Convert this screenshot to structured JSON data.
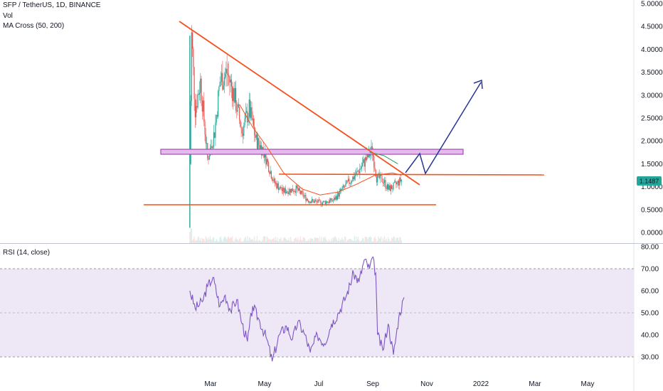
{
  "header": {
    "symbol_line": "SFP / TetherUS, 1D, BINANCE",
    "vol_label": "Vol",
    "ma_label": "MA Cross (50, 200)"
  },
  "rsi_pane": {
    "label": "RSI (14, close)"
  },
  "price_badge": "1.1487",
  "colors": {
    "bull": "#26a69a",
    "bear": "#ef5350",
    "trendline": "#f4511e",
    "ma_fast": "#f4511e",
    "ma_slow": "#1b9e5a",
    "zone_fill": "#e1bee7",
    "zone_stroke": "#ab47bc",
    "projection": "#283593",
    "rsi_line": "#7e57c2",
    "rsi_band": "#ede7f6",
    "badge": "#26a69a"
  },
  "chart_data": [
    {
      "type": "candlestick",
      "title": "SFP / TetherUS, 1D, BINANCE",
      "y_ticks": [
        "5.0000",
        "4.5000",
        "4.0000",
        "3.5000",
        "3.0000",
        "2.5000",
        "2.0000",
        "1.5000",
        "1.0000",
        "0.5000",
        "0.0000"
      ],
      "ylim": [
        0,
        5
      ],
      "x_ticks": [
        "Mar",
        "May",
        "Jul",
        "Sep",
        "Nov",
        "2022",
        "Mar",
        "May"
      ],
      "last_price": 1.1487,
      "approx_path": [
        {
          "x": "Feb 08",
          "y": 1.5
        },
        {
          "x": "Feb 10",
          "y": 4.3
        },
        {
          "x": "Feb 14",
          "y": 2.7
        },
        {
          "x": "Feb 20",
          "y": 3.3
        },
        {
          "x": "Feb 28",
          "y": 1.6
        },
        {
          "x": "Mar 08",
          "y": 2.2
        },
        {
          "x": "Mar 14",
          "y": 3.3
        },
        {
          "x": "Mar 22",
          "y": 3.5
        },
        {
          "x": "Mar 30",
          "y": 3.0
        },
        {
          "x": "Apr 08",
          "y": 2.2
        },
        {
          "x": "Apr 16",
          "y": 2.7
        },
        {
          "x": "Apr 24",
          "y": 2.0
        },
        {
          "x": "May 02",
          "y": 1.8
        },
        {
          "x": "May 14",
          "y": 1.1
        },
        {
          "x": "May 24",
          "y": 0.9
        },
        {
          "x": "Jun 08",
          "y": 0.95
        },
        {
          "x": "Jun 22",
          "y": 0.7
        },
        {
          "x": "Jul 06",
          "y": 0.65
        },
        {
          "x": "Jul 20",
          "y": 0.7
        },
        {
          "x": "Aug 02",
          "y": 1.0
        },
        {
          "x": "Aug 16",
          "y": 1.3
        },
        {
          "x": "Aug 26",
          "y": 1.6
        },
        {
          "x": "Sep 02",
          "y": 1.8
        },
        {
          "x": "Sep 07",
          "y": 1.2
        },
        {
          "x": "Sep 14",
          "y": 1.15
        },
        {
          "x": "Sep 20",
          "y": 0.95
        },
        {
          "x": "Sep 26",
          "y": 1.0
        },
        {
          "x": "Oct 05",
          "y": 1.15
        }
      ],
      "ma_cross": {
        "fast": [
          {
            "x": "Apr 05",
            "y": 2.8
          },
          {
            "x": "Apr 20",
            "y": 2.3
          },
          {
            "x": "May 05",
            "y": 1.9
          },
          {
            "x": "May 25",
            "y": 1.3
          },
          {
            "x": "Jun 15",
            "y": 0.95
          },
          {
            "x": "Jul 05",
            "y": 0.82
          },
          {
            "x": "Jul 25",
            "y": 0.88
          },
          {
            "x": "Aug 15",
            "y": 1.05
          },
          {
            "x": "Sep 05",
            "y": 1.25
          },
          {
            "x": "Sep 25",
            "y": 1.3
          },
          {
            "x": "Oct 05",
            "y": 1.25
          }
        ],
        "slow": [
          {
            "x": "Aug 30",
            "y": 1.75
          },
          {
            "x": "Sep 15",
            "y": 1.68
          },
          {
            "x": "Oct 01",
            "y": 1.5
          }
        ]
      }
    },
    {
      "type": "line",
      "title": "RSI (14, close)",
      "y_ticks": [
        "80.00",
        "70.00",
        "60.00",
        "50.00",
        "40.00",
        "30.00"
      ],
      "ylim": [
        25,
        80
      ],
      "overbought": 70,
      "oversold": 30,
      "x_ticks": [
        "Mar",
        "May",
        "Jul",
        "Sep",
        "Nov",
        "2022",
        "Mar",
        "May"
      ],
      "approx_path": [
        {
          "x": "Feb 08",
          "y": 60
        },
        {
          "x": "Feb 14",
          "y": 52
        },
        {
          "x": "Feb 22",
          "y": 55
        },
        {
          "x": "Feb 28",
          "y": 62
        },
        {
          "x": "Mar 06",
          "y": 66
        },
        {
          "x": "Mar 14",
          "y": 53
        },
        {
          "x": "Mar 20",
          "y": 58
        },
        {
          "x": "Mar 26",
          "y": 51
        },
        {
          "x": "Apr 02",
          "y": 56
        },
        {
          "x": "Apr 08",
          "y": 45
        },
        {
          "x": "Apr 14",
          "y": 37
        },
        {
          "x": "Apr 20",
          "y": 53
        },
        {
          "x": "Apr 28",
          "y": 46
        },
        {
          "x": "May 06",
          "y": 38
        },
        {
          "x": "May 12",
          "y": 28
        },
        {
          "x": "May 20",
          "y": 40
        },
        {
          "x": "May 28",
          "y": 44
        },
        {
          "x": "Jun 04",
          "y": 38
        },
        {
          "x": "Jun 10",
          "y": 46
        },
        {
          "x": "Jun 18",
          "y": 40
        },
        {
          "x": "Jun 24",
          "y": 32
        },
        {
          "x": "Jul 02",
          "y": 40
        },
        {
          "x": "Jul 10",
          "y": 36
        },
        {
          "x": "Jul 18",
          "y": 45
        },
        {
          "x": "Jul 26",
          "y": 50
        },
        {
          "x": "Aug 04",
          "y": 58
        },
        {
          "x": "Aug 12",
          "y": 68
        },
        {
          "x": "Aug 18",
          "y": 64
        },
        {
          "x": "Aug 24",
          "y": 74
        },
        {
          "x": "Aug 30",
          "y": 70
        },
        {
          "x": "Sep 02",
          "y": 75
        },
        {
          "x": "Sep 06",
          "y": 68
        },
        {
          "x": "Sep 08",
          "y": 40
        },
        {
          "x": "Sep 14",
          "y": 33
        },
        {
          "x": "Sep 20",
          "y": 45
        },
        {
          "x": "Sep 26",
          "y": 31
        },
        {
          "x": "Oct 02",
          "y": 48
        },
        {
          "x": "Oct 08",
          "y": 57
        }
      ]
    }
  ]
}
